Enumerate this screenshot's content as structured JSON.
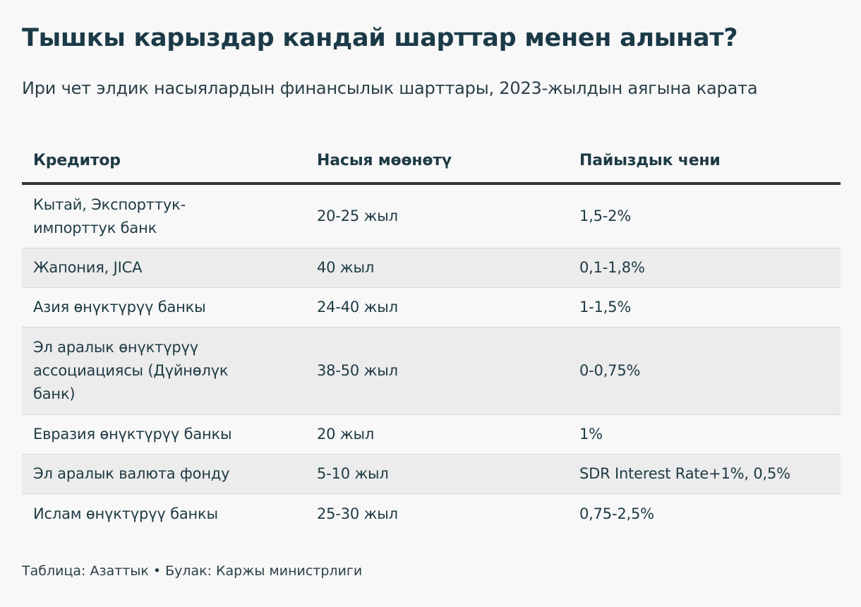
{
  "title": "Тышкы карыздар кандай шарттар менен алынат?",
  "subtitle": "Ири чет элдик насыялардын финансылык шарттары, 2023-жылдын аягына карата",
  "table": {
    "headers": [
      "Кредитор",
      "Насыя мөөнөтү",
      "Пайыздык чени"
    ],
    "rows": [
      {
        "creditor": "Кытай, Экспорттук-импорттук банк",
        "term": "20-25 жыл",
        "rate": "1,5-2%"
      },
      {
        "creditor": "Жапония, JICA",
        "term": "40 жыл",
        "rate": "0,1-1,8%"
      },
      {
        "creditor": "Азия өнүктүрүү банкы",
        "term": "24-40 жыл",
        "rate": "1-1,5%"
      },
      {
        "creditor": "Эл аралык өнүктүрүү ассоциациясы (Дүйнөлүк банк)",
        "term": "38-50 жыл",
        "rate": "0-0,75%"
      },
      {
        "creditor": "Евразия өнүктүрүү банкы",
        "term": "20 жыл",
        "rate": "1%"
      },
      {
        "creditor": "Эл аралык валюта фонду",
        "term": "5-10 жыл",
        "rate": "SDR Interest Rate+1%, 0,5%"
      },
      {
        "creditor": "Ислам өнүктүрүү банкы",
        "term": "25-30 жыл",
        "rate": "0,75-2,5%"
      }
    ]
  },
  "footer": {
    "table_credit": "Таблица: Азаттык",
    "separator": "•",
    "source": "Булак: Каржы министрлиги"
  }
}
